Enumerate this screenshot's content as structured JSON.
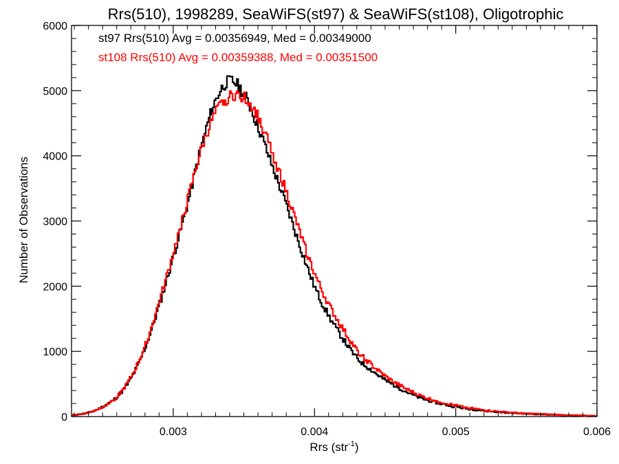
{
  "chart_data": {
    "type": "line",
    "title": "Rrs(510), 1998289, SeaWiFS(st97) & SeaWiFS(st108), Oligotrophic",
    "xlabel": "Rrs (str",
    "xlabel_sup": "-1",
    "xlabel_close": ")",
    "ylabel": "Number of Observations",
    "xlim": [
      0.00228,
      0.006
    ],
    "ylim": [
      0,
      6000
    ],
    "x_ticks": [
      {
        "value": 0.003,
        "label": "0.003"
      },
      {
        "value": 0.004,
        "label": "0.004"
      },
      {
        "value": 0.005,
        "label": "0.005"
      },
      {
        "value": 0.006,
        "label": "0.006"
      }
    ],
    "y_ticks": [
      {
        "value": 0,
        "label": "0"
      },
      {
        "value": 1000,
        "label": "1000"
      },
      {
        "value": 2000,
        "label": "2000"
      },
      {
        "value": 3000,
        "label": "3000"
      },
      {
        "value": 4000,
        "label": "4000"
      },
      {
        "value": 5000,
        "label": "5000"
      },
      {
        "value": 6000,
        "label": "6000"
      }
    ],
    "stats": [
      {
        "text": "st97 Rrs(510) Avg = 0.00356949, Med = 0.00349000",
        "color": "#000000"
      },
      {
        "text": "st108 Rrs(510) Avg = 0.00359388, Med = 0.00351500",
        "color": "#ff0000"
      }
    ],
    "series": [
      {
        "name": "st97",
        "color": "#000000",
        "x": [
          0.00228,
          0.0024,
          0.0025,
          0.0026,
          0.0027,
          0.0028,
          0.0029,
          0.003,
          0.0031,
          0.0032,
          0.0033,
          0.0034,
          0.0035,
          0.0036,
          0.0037,
          0.0038,
          0.0039,
          0.004,
          0.0041,
          0.0042,
          0.0043,
          0.0044,
          0.0045,
          0.0046,
          0.0047,
          0.0048,
          0.005,
          0.0052,
          0.0054,
          0.0056,
          0.0058,
          0.006
        ],
        "y": [
          20,
          60,
          150,
          300,
          580,
          1050,
          1700,
          2450,
          3250,
          4150,
          4850,
          5150,
          4950,
          4450,
          3850,
          3250,
          2600,
          2000,
          1550,
          1200,
          900,
          720,
          560,
          440,
          330,
          250,
          150,
          90,
          55,
          35,
          20,
          10
        ]
      },
      {
        "name": "st108",
        "color": "#ff0000",
        "x": [
          0.00228,
          0.0024,
          0.0025,
          0.0026,
          0.0027,
          0.0028,
          0.0029,
          0.003,
          0.0031,
          0.0032,
          0.0033,
          0.0034,
          0.0035,
          0.0036,
          0.0037,
          0.0038,
          0.0039,
          0.004,
          0.0041,
          0.0042,
          0.0043,
          0.0044,
          0.0045,
          0.0046,
          0.0047,
          0.0048,
          0.005,
          0.0052,
          0.0054,
          0.0056,
          0.0058,
          0.006
        ],
        "y": [
          20,
          60,
          150,
          300,
          600,
          1080,
          1750,
          2500,
          3300,
          4100,
          4650,
          4900,
          4900,
          4600,
          4050,
          3450,
          2800,
          2200,
          1720,
          1350,
          1020,
          800,
          620,
          480,
          370,
          280,
          170,
          100,
          60,
          38,
          22,
          10
        ]
      }
    ]
  }
}
